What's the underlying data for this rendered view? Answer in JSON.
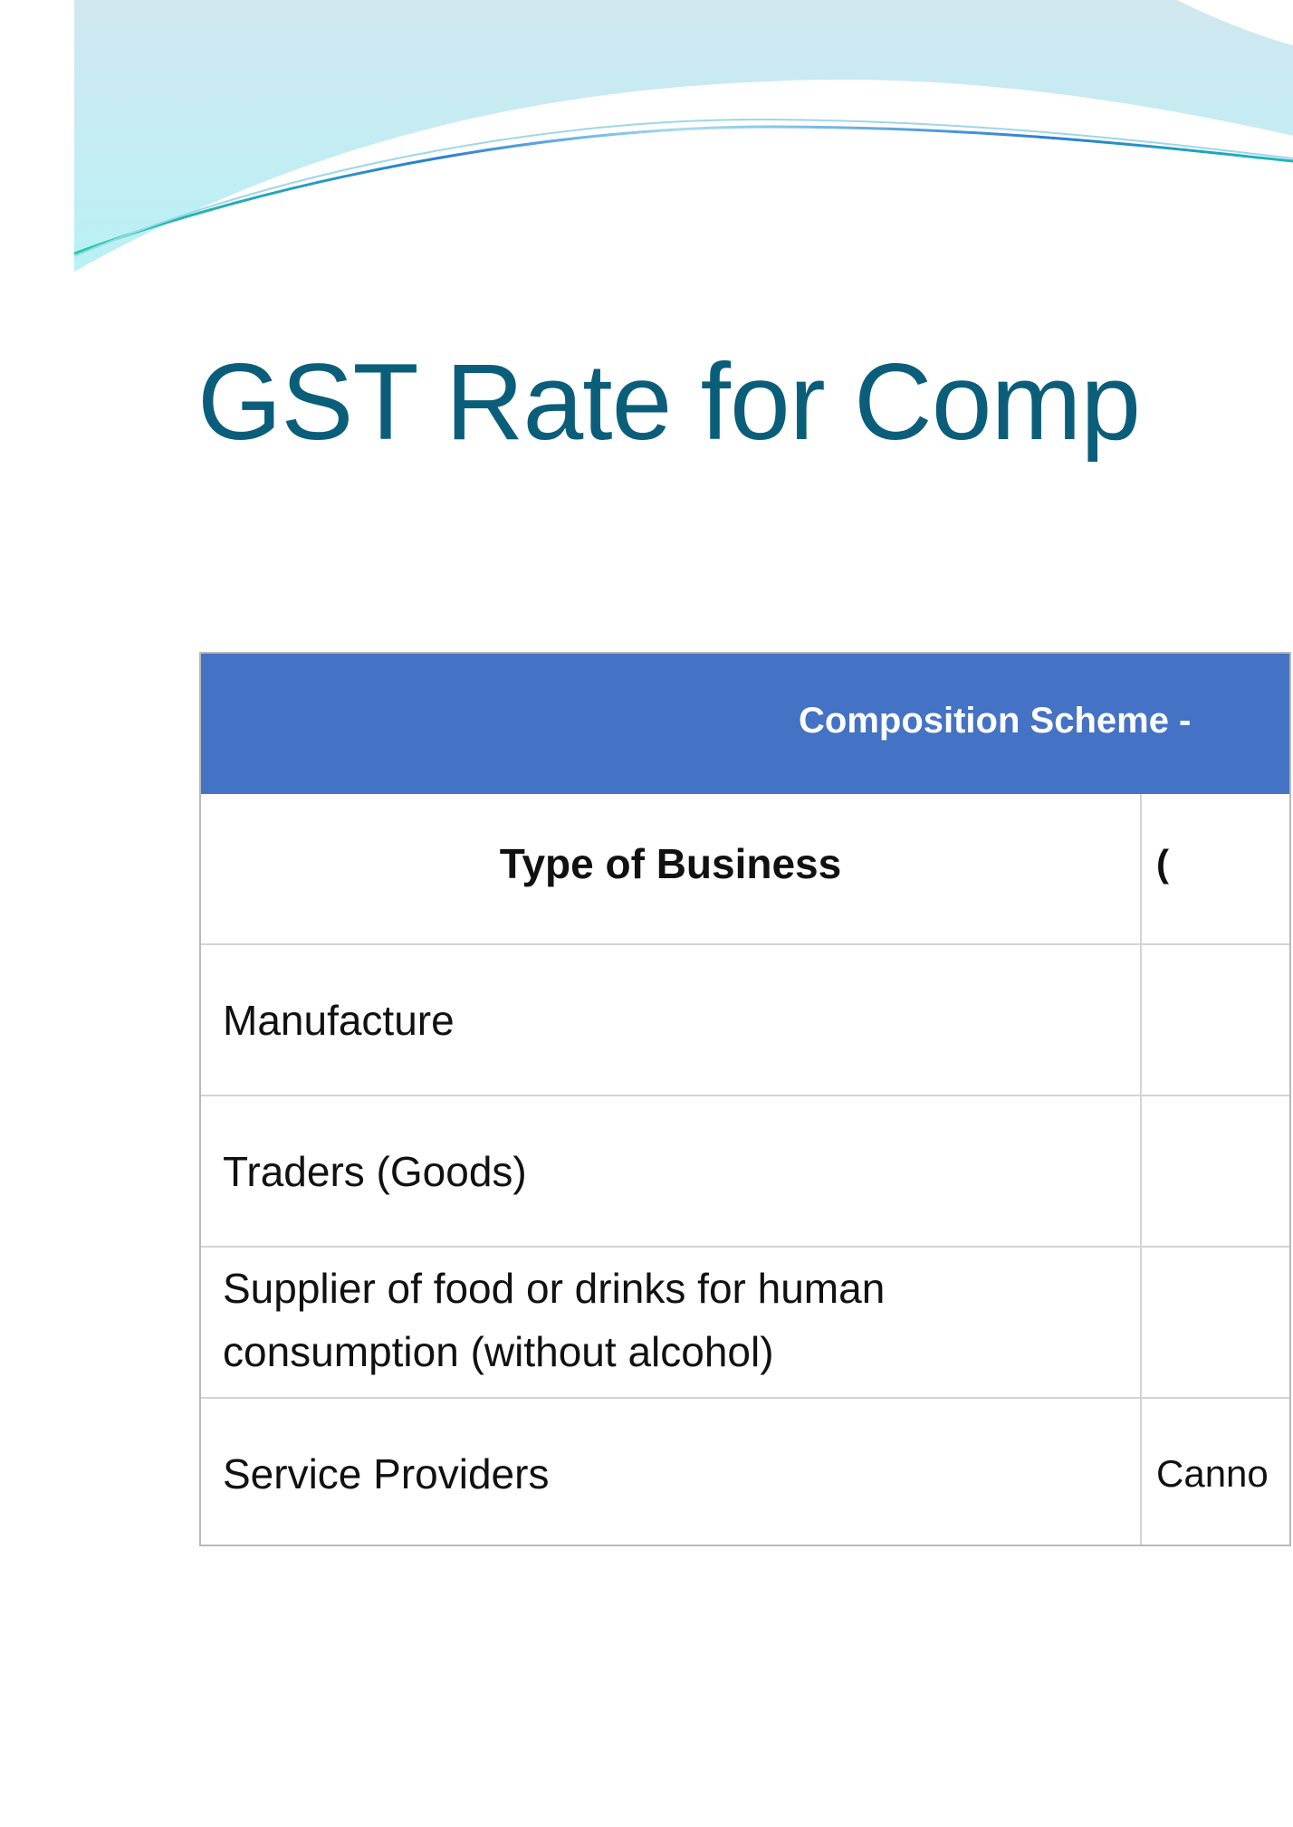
{
  "slide": {
    "title": "GST Rate for Comp",
    "table": {
      "banner": "Composition Scheme -",
      "column_header": "Type of Business",
      "column_header_2_partial": "(",
      "rows": [
        {
          "type": "Manufacture",
          "value": ""
        },
        {
          "type": "Traders (Goods)",
          "value": ""
        },
        {
          "type": "Supplier of food or drinks for human",
          "type_line2": "consumption (without alcohol)",
          "value": ""
        },
        {
          "type": "Service Providers",
          "value": "Canno"
        }
      ]
    },
    "colors": {
      "title": "#0b5e7a",
      "banner": "#4472c4"
    }
  }
}
